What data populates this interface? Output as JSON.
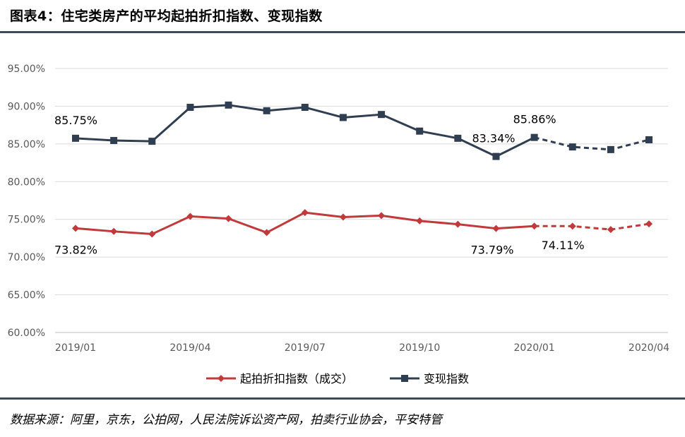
{
  "figure": {
    "title": "图表4：住宅类房产的平均起拍折扣指数、变现指数",
    "source": "数据来源：阿里，京东，公拍网，人民法院诉讼资产网，拍卖行业协会，平安特管"
  },
  "chart_data": {
    "type": "line",
    "x": [
      "2019/01",
      "2019/02",
      "2019/03",
      "2019/04",
      "2019/05",
      "2019/06",
      "2019/07",
      "2019/08",
      "2019/09",
      "2019/10",
      "2019/11",
      "2019/12",
      "2020/01",
      "2020/02",
      "2020/03",
      "2020/04"
    ],
    "x_tick_labels": [
      "2019/01",
      "2019/04",
      "2019/07",
      "2019/10",
      "2020/01",
      "2020/04"
    ],
    "y_tick_labels": [
      "60.00%",
      "65.00%",
      "70.00%",
      "75.00%",
      "80.00%",
      "85.00%",
      "90.00%",
      "95.00%"
    ],
    "ylim": [
      60,
      95
    ],
    "y_unit": "%",
    "grid": true,
    "legend_position": "bottom-center",
    "series": [
      {
        "name": "起拍折扣指数（成交）",
        "color": "#c0393b",
        "marker": "diamond",
        "values": [
          73.82,
          73.4,
          73.05,
          75.4,
          75.1,
          73.25,
          75.9,
          75.3,
          75.5,
          74.8,
          74.35,
          73.79,
          74.11,
          74.1,
          73.65,
          74.4
        ],
        "dashed_from_index": 12,
        "labels": [
          {
            "index": 0,
            "text": "73.82%"
          },
          {
            "index": 11,
            "text": "73.79%"
          },
          {
            "index": 12,
            "text": "74.11%"
          }
        ]
      },
      {
        "name": "变现指数",
        "color": "#2f3e50",
        "marker": "square",
        "values": [
          85.75,
          85.45,
          85.35,
          89.85,
          90.15,
          89.4,
          89.85,
          88.5,
          88.9,
          86.7,
          85.75,
          83.34,
          85.86,
          84.6,
          84.25,
          85.55
        ],
        "dashed_from_index": 12,
        "labels": [
          {
            "index": 0,
            "text": "85.75%"
          },
          {
            "index": 11,
            "text": "83.34%"
          },
          {
            "index": 12,
            "text": "85.86%"
          }
        ]
      }
    ]
  }
}
